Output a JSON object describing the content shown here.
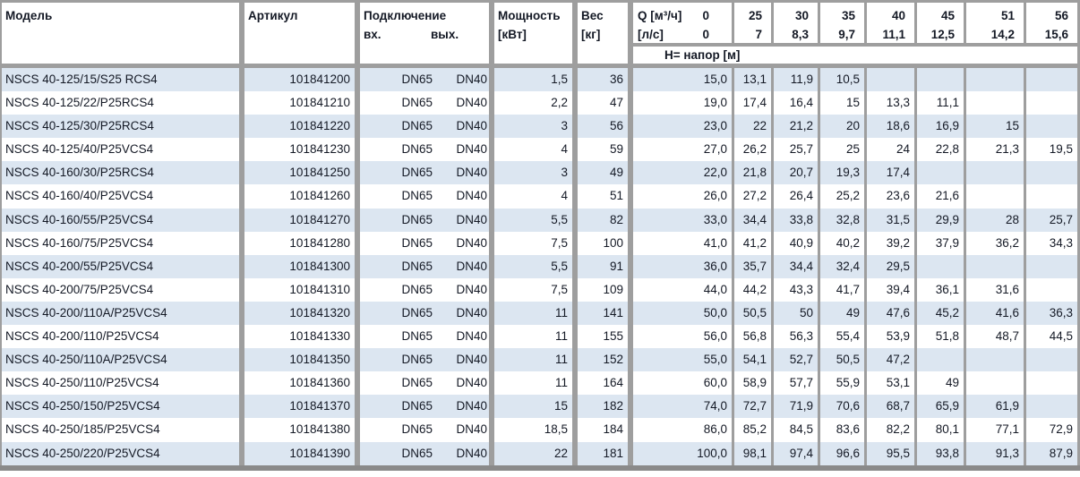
{
  "colors": {
    "stripe_row": "#dce6f1",
    "border_gray": "#9e9e9e",
    "bottom_bar": "#8a8a8a",
    "text": "#141925"
  },
  "header": {
    "model": "Модель",
    "article": "Артикул",
    "connection": "Подключение",
    "conn_in": "вх.",
    "conn_out": "вых.",
    "power_l1": "Мощность",
    "power_l2": "[кВт]",
    "weight_l1": "Вес",
    "weight_l2": "[кг]",
    "q_row1_label": "Q [м³/ч]",
    "q_row1_zero": "0",
    "q_row2_label": "[л/с]",
    "q_row2_zero": "0",
    "head_band": "Н= напор [м]",
    "flow_cols": [
      {
        "m3h": "25",
        "ls": "7"
      },
      {
        "m3h": "30",
        "ls": "8,3"
      },
      {
        "m3h": "35",
        "ls": "9,7"
      },
      {
        "m3h": "40",
        "ls": "11,1"
      },
      {
        "m3h": "45",
        "ls": "12,5"
      },
      {
        "m3h": "51",
        "ls": "14,2"
      },
      {
        "m3h": "56",
        "ls": "15,6"
      }
    ]
  },
  "rows": [
    {
      "model": "NSCS 40-125/15/S25 RCS4",
      "article": "101841200",
      "inlet": "DN65",
      "outlet": "DN40",
      "power": "1,5",
      "weight": "36",
      "head": [
        "15,0",
        "13,1",
        "11,9",
        "10,5",
        "",
        "",
        "",
        ""
      ]
    },
    {
      "model": "NSCS 40-125/22/P25RCS4",
      "article": "101841210",
      "inlet": "DN65",
      "outlet": "DN40",
      "power": "2,2",
      "weight": "47",
      "head": [
        "19,0",
        "17,4",
        "16,4",
        "15",
        "13,3",
        "11,1",
        "",
        ""
      ]
    },
    {
      "model": "NSCS 40-125/30/P25RCS4",
      "article": "101841220",
      "inlet": "DN65",
      "outlet": "DN40",
      "power": "3",
      "weight": "56",
      "head": [
        "23,0",
        "22",
        "21,2",
        "20",
        "18,6",
        "16,9",
        "15",
        ""
      ]
    },
    {
      "model": "NSCS 40-125/40/P25VCS4",
      "article": "101841230",
      "inlet": "DN65",
      "outlet": "DN40",
      "power": "4",
      "weight": "59",
      "head": [
        "27,0",
        "26,2",
        "25,7",
        "25",
        "24",
        "22,8",
        "21,3",
        "19,5"
      ]
    },
    {
      "model": "NSCS 40-160/30/P25RCS4",
      "article": "101841250",
      "inlet": "DN65",
      "outlet": "DN40",
      "power": "3",
      "weight": "49",
      "head": [
        "22,0",
        "21,8",
        "20,7",
        "19,3",
        "17,4",
        "",
        "",
        ""
      ]
    },
    {
      "model": "NSCS 40-160/40/P25VCS4",
      "article": "101841260",
      "inlet": "DN65",
      "outlet": "DN40",
      "power": "4",
      "weight": "51",
      "head": [
        "26,0",
        "27,2",
        "26,4",
        "25,2",
        "23,6",
        "21,6",
        "",
        ""
      ]
    },
    {
      "model": "NSCS 40-160/55/P25VCS4",
      "article": "101841270",
      "inlet": "DN65",
      "outlet": "DN40",
      "power": "5,5",
      "weight": "82",
      "head": [
        "33,0",
        "34,4",
        "33,8",
        "32,8",
        "31,5",
        "29,9",
        "28",
        "25,7"
      ]
    },
    {
      "model": "NSCS 40-160/75/P25VCS4",
      "article": "101841280",
      "inlet": "DN65",
      "outlet": "DN40",
      "power": "7,5",
      "weight": "100",
      "head": [
        "41,0",
        "41,2",
        "40,9",
        "40,2",
        "39,2",
        "37,9",
        "36,2",
        "34,3"
      ]
    },
    {
      "model": "NSCS 40-200/55/P25VCS4",
      "article": "101841300",
      "inlet": "DN65",
      "outlet": "DN40",
      "power": "5,5",
      "weight": "91",
      "head": [
        "36,0",
        "35,7",
        "34,4",
        "32,4",
        "29,5",
        "",
        "",
        ""
      ]
    },
    {
      "model": "NSCS 40-200/75/P25VCS4",
      "article": "101841310",
      "inlet": "DN65",
      "outlet": "DN40",
      "power": "7,5",
      "weight": "109",
      "head": [
        "44,0",
        "44,2",
        "43,3",
        "41,7",
        "39,4",
        "36,1",
        "31,6",
        ""
      ]
    },
    {
      "model": "NSCS 40-200/110A/P25VCS4",
      "article": "101841320",
      "inlet": "DN65",
      "outlet": "DN40",
      "power": "11",
      "weight": "141",
      "head": [
        "50,0",
        "50,5",
        "50",
        "49",
        "47,6",
        "45,2",
        "41,6",
        "36,3"
      ]
    },
    {
      "model": "NSCS 40-200/110/P25VCS4",
      "article": "101841330",
      "inlet": "DN65",
      "outlet": "DN40",
      "power": "11",
      "weight": "155",
      "head": [
        "56,0",
        "56,8",
        "56,3",
        "55,4",
        "53,9",
        "51,8",
        "48,7",
        "44,5"
      ]
    },
    {
      "model": "NSCS 40-250/110A/P25VCS4",
      "article": "101841350",
      "inlet": "DN65",
      "outlet": "DN40",
      "power": "11",
      "weight": "152",
      "head": [
        "55,0",
        "54,1",
        "52,7",
        "50,5",
        "47,2",
        "",
        "",
        ""
      ]
    },
    {
      "model": "NSCS 40-250/110/P25VCS4",
      "article": "101841360",
      "inlet": "DN65",
      "outlet": "DN40",
      "power": "11",
      "weight": "164",
      "head": [
        "60,0",
        "58,9",
        "57,7",
        "55,9",
        "53,1",
        "49",
        "",
        ""
      ]
    },
    {
      "model": "NSCS 40-250/150/P25VCS4",
      "article": "101841370",
      "inlet": "DN65",
      "outlet": "DN40",
      "power": "15",
      "weight": "182",
      "head": [
        "74,0",
        "72,7",
        "71,9",
        "70,6",
        "68,7",
        "65,9",
        "61,9",
        ""
      ]
    },
    {
      "model": "NSCS 40-250/185/P25VCS4",
      "article": "101841380",
      "inlet": "DN65",
      "outlet": "DN40",
      "power": "18,5",
      "weight": "184",
      "head": [
        "86,0",
        "85,2",
        "84,5",
        "83,6",
        "82,2",
        "80,1",
        "77,1",
        "72,9"
      ]
    },
    {
      "model": "NSCS 40-250/220/P25VCS4",
      "article": "101841390",
      "inlet": "DN65",
      "outlet": "DN40",
      "power": "22",
      "weight": "181",
      "head": [
        "100,0",
        "98,1",
        "97,4",
        "96,6",
        "95,5",
        "93,8",
        "91,3",
        "87,9"
      ]
    }
  ]
}
